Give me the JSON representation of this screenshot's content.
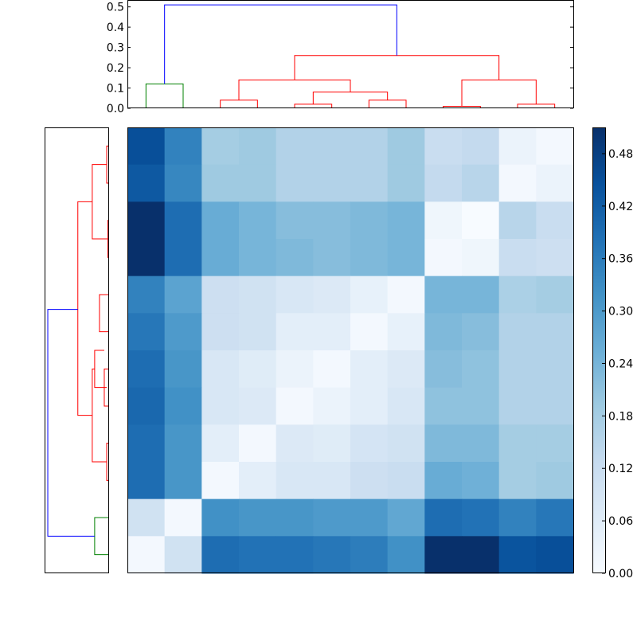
{
  "chart_data": [
    {
      "type": "heatmap",
      "rows": 12,
      "cols": 12,
      "values": [
        [
          0.45,
          0.35,
          0.18,
          0.19,
          0.16,
          0.16,
          0.16,
          0.19,
          0.12,
          0.13,
          0.03,
          0.01
        ],
        [
          0.43,
          0.34,
          0.19,
          0.19,
          0.16,
          0.16,
          0.16,
          0.19,
          0.13,
          0.15,
          0.01,
          0.03
        ],
        [
          0.51,
          0.39,
          0.26,
          0.24,
          0.22,
          0.22,
          0.23,
          0.24,
          0.02,
          0.0,
          0.15,
          0.12
        ],
        [
          0.51,
          0.39,
          0.26,
          0.24,
          0.23,
          0.22,
          0.23,
          0.24,
          0.01,
          0.02,
          0.12,
          0.11
        ],
        [
          0.35,
          0.28,
          0.11,
          0.1,
          0.08,
          0.07,
          0.04,
          0.01,
          0.24,
          0.24,
          0.17,
          0.18
        ],
        [
          0.37,
          0.3,
          0.11,
          0.1,
          0.05,
          0.05,
          0.01,
          0.04,
          0.23,
          0.22,
          0.16,
          0.16
        ],
        [
          0.39,
          0.31,
          0.08,
          0.06,
          0.03,
          0.01,
          0.05,
          0.07,
          0.22,
          0.21,
          0.16,
          0.16
        ],
        [
          0.4,
          0.32,
          0.08,
          0.07,
          0.01,
          0.03,
          0.05,
          0.08,
          0.21,
          0.21,
          0.16,
          0.16
        ],
        [
          0.39,
          0.31,
          0.05,
          0.01,
          0.07,
          0.06,
          0.09,
          0.1,
          0.23,
          0.23,
          0.18,
          0.18
        ],
        [
          0.39,
          0.31,
          0.01,
          0.05,
          0.08,
          0.08,
          0.11,
          0.12,
          0.26,
          0.25,
          0.18,
          0.19
        ],
        [
          0.1,
          0.01,
          0.32,
          0.31,
          0.31,
          0.3,
          0.3,
          0.27,
          0.39,
          0.38,
          0.35,
          0.37
        ],
        [
          0.01,
          0.1,
          0.39,
          0.38,
          0.38,
          0.37,
          0.36,
          0.32,
          0.51,
          0.51,
          0.44,
          0.45
        ]
      ],
      "colormap": "Blues",
      "colorbar": {
        "min": 0.0,
        "max": 0.51,
        "ticks": [
          "0.00",
          "0.06",
          "0.12",
          "0.18",
          "0.24",
          "0.30",
          "0.36",
          "0.42",
          "0.48"
        ]
      }
    },
    {
      "type": "dendrogram",
      "orientation": "top",
      "leaf_count": 12,
      "ylim": [
        0,
        0.53
      ],
      "y_ticks": [
        "0.0",
        "0.1",
        "0.2",
        "0.3",
        "0.4",
        "0.5"
      ],
      "links": [
        {
          "left": 0,
          "right": 1,
          "left_height": 0,
          "right_height": 0,
          "height": 0.12,
          "color": "#008000"
        },
        {
          "left": 2,
          "right": 3,
          "left_height": 0,
          "right_height": 0,
          "height": 0.04,
          "color": "#ff0000"
        },
        {
          "left": 4,
          "right": 5,
          "left_height": 0,
          "right_height": 0,
          "height": 0.02,
          "color": "#ff0000"
        },
        {
          "left": 6,
          "right": 7,
          "left_height": 0,
          "right_height": 0,
          "height": 0.04,
          "color": "#ff0000"
        },
        {
          "left": 4.5,
          "right": 6.5,
          "left_height": 0.02,
          "right_height": 0.04,
          "height": 0.08,
          "color": "#ff0000"
        },
        {
          "left": 2.5,
          "right": 5.5,
          "left_height": 0.04,
          "right_height": 0.08,
          "height": 0.14,
          "color": "#ff0000"
        },
        {
          "left": 8,
          "right": 9,
          "left_height": 0,
          "right_height": 0,
          "height": 0.01,
          "color": "#ff0000"
        },
        {
          "left": 10,
          "right": 11,
          "left_height": 0,
          "right_height": 0,
          "height": 0.02,
          "color": "#ff0000"
        },
        {
          "left": 8.5,
          "right": 10.5,
          "left_height": 0.01,
          "right_height": 0.02,
          "height": 0.14,
          "color": "#ff0000"
        },
        {
          "left": 4,
          "right": 9.5,
          "left_height": 0.14,
          "right_height": 0.14,
          "height": 0.26,
          "color": "#ff0000"
        },
        {
          "left": 0.5,
          "right": 6.75,
          "left_height": 0.12,
          "right_height": 0.26,
          "height": 0.51,
          "color": "#0000ff"
        }
      ]
    },
    {
      "type": "dendrogram",
      "orientation": "left",
      "leaf_count": 12,
      "xlim": [
        0,
        0.53
      ],
      "links": [
        {
          "left": 0,
          "right": 1,
          "left_height": 0,
          "right_height": 0,
          "height": 0.02,
          "color": "#ff0000"
        },
        {
          "left": 2,
          "right": 3,
          "left_height": 0,
          "right_height": 0,
          "height": 0.01,
          "color": "#ff0000"
        },
        {
          "left": 0.5,
          "right": 2.5,
          "left_height": 0.02,
          "right_height": 0.01,
          "height": 0.14,
          "color": "#ff0000"
        },
        {
          "left": 4,
          "right": 5,
          "left_height": 0,
          "right_height": 0,
          "height": 0.08,
          "color": "#ff0000"
        },
        {
          "left": 6,
          "right": 7,
          "left_height": 0,
          "right_height": 0,
          "height": 0.04,
          "color": "#ff0000"
        },
        {
          "left": 5.5,
          "right": 6.5,
          "left_height": 0.04,
          "right_height": 0.02,
          "height": 0.12,
          "color": "#ff0000"
        },
        {
          "left": 8,
          "right": 9,
          "left_height": 0,
          "right_height": 0,
          "height": 0.02,
          "color": "#ff0000"
        },
        {
          "left": 6,
          "right": 8.5,
          "left_height": 0.12,
          "right_height": 0.02,
          "height": 0.14,
          "color": "#ff0000"
        },
        {
          "left": 1.5,
          "right": 7.25,
          "left_height": 0.14,
          "right_height": 0.14,
          "height": 0.26,
          "color": "#ff0000"
        },
        {
          "left": 10,
          "right": 11,
          "left_height": 0,
          "right_height": 0,
          "height": 0.12,
          "color": "#008000"
        },
        {
          "left": 4.4,
          "right": 10.5,
          "left_height": 0.26,
          "right_height": 0.12,
          "height": 0.51,
          "color": "#0000ff"
        }
      ]
    }
  ]
}
